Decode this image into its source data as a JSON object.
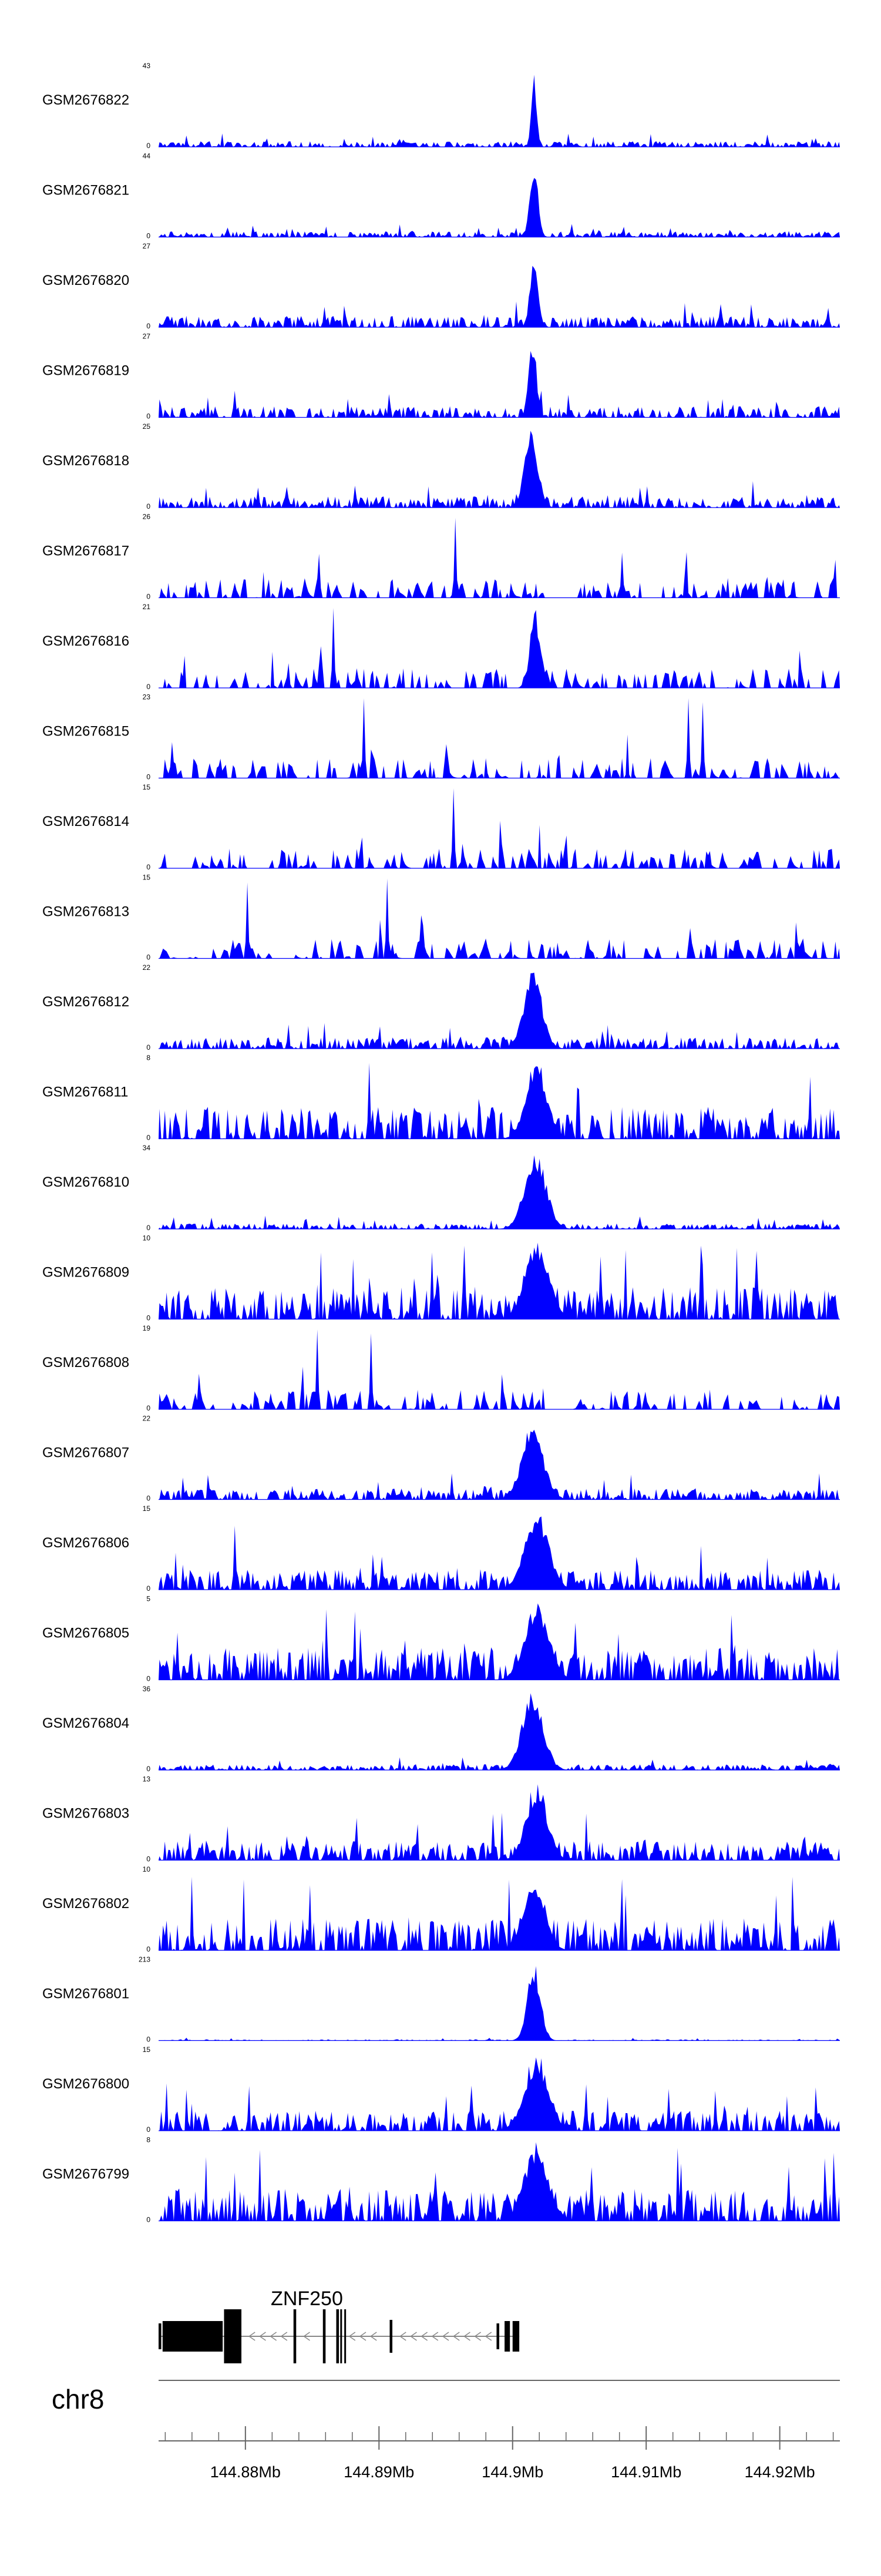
{
  "chart_data": {
    "type": "area",
    "title": "",
    "chromosome": "chr8",
    "x_axis": {
      "unit": "Mb",
      "range": [
        144.8735,
        144.9245
      ],
      "ticks": [
        144.88,
        144.89,
        144.9,
        144.91,
        144.92
      ],
      "tick_labels": [
        "144.88Mb",
        "144.89Mb",
        "144.9Mb",
        "144.91Mb",
        "144.92Mb"
      ]
    },
    "tracks": [
      {
        "name": "GSM2676822",
        "ymax": "43",
        "yzero": "0",
        "style": "dense",
        "peaks": [
          {
            "x": 144.9016,
            "h": 1.0,
            "w": 0.0002
          }
        ],
        "spikes": []
      },
      {
        "name": "GSM2676821",
        "ymax": "44",
        "yzero": "0",
        "style": "dense",
        "peaks": [
          {
            "x": 144.9016,
            "h": 0.95,
            "w": 0.0003
          }
        ],
        "spikes": []
      },
      {
        "name": "GSM2676820",
        "ymax": "27",
        "yzero": "0",
        "style": "dense",
        "peaks": [
          {
            "x": 144.9016,
            "h": 0.9,
            "w": 0.0003
          }
        ],
        "spikes": []
      },
      {
        "name": "GSM2676819",
        "ymax": "27",
        "yzero": "0",
        "style": "dense",
        "peaks": [
          {
            "x": 144.9015,
            "h": 1.0,
            "w": 0.0003
          }
        ],
        "spikes": []
      },
      {
        "name": "GSM2676818",
        "ymax": "25",
        "yzero": "0",
        "style": "dense",
        "peaks": [
          {
            "x": 144.9014,
            "h": 1.0,
            "w": 0.0005
          }
        ],
        "spikes": []
      },
      {
        "name": "GSM2676817",
        "ymax": "26",
        "yzero": "0",
        "style": "sparse",
        "peaks": [],
        "spikes": [
          {
            "x": 144.8956,
            "h": 1.0
          },
          {
            "x": 144.8854,
            "h": 0.55
          }
        ]
      },
      {
        "name": "GSM2676816",
        "ymax": "21",
        "yzero": "0",
        "style": "sparse",
        "peaks": [
          {
            "x": 144.9017,
            "h": 1.0,
            "w": 0.0004
          }
        ],
        "spikes": [
          {
            "x": 144.8865,
            "h": 1.0
          }
        ]
      },
      {
        "name": "GSM2676815",
        "ymax": "23",
        "yzero": "0",
        "style": "sparse",
        "peaks": [],
        "spikes": [
          {
            "x": 144.8888,
            "h": 1.0
          },
          {
            "x": 144.9131,
            "h": 1.0
          },
          {
            "x": 144.9141,
            "h": 0.95
          },
          {
            "x": 144.8745,
            "h": 0.45
          }
        ]
      },
      {
        "name": "GSM2676814",
        "ymax": "15",
        "yzero": "0",
        "style": "sparse",
        "peaks": [],
        "spikes": [
          {
            "x": 144.8955,
            "h": 1.0
          }
        ]
      },
      {
        "name": "GSM2676813",
        "ymax": "15",
        "yzero": "0",
        "style": "sparse",
        "peaks": [],
        "spikes": [
          {
            "x": 144.8906,
            "h": 1.0
          },
          {
            "x": 144.8801,
            "h": 0.95
          }
        ]
      },
      {
        "name": "GSM2676812",
        "ymax": "22",
        "yzero": "0",
        "style": "dense",
        "peaks": [
          {
            "x": 144.9015,
            "h": 1.0,
            "w": 0.0007
          }
        ],
        "spikes": []
      },
      {
        "name": "GSM2676811",
        "ymax": "8",
        "yzero": "0",
        "style": "dense",
        "peaks": [
          {
            "x": 144.9018,
            "h": 1.0,
            "w": 0.0008
          }
        ],
        "spikes": [
          {
            "x": 144.8892,
            "h": 0.95
          }
        ]
      },
      {
        "name": "GSM2676810",
        "ymax": "34",
        "yzero": "0",
        "style": "dense",
        "peaks": [
          {
            "x": 144.9017,
            "h": 1.0,
            "w": 0.0008
          }
        ],
        "spikes": []
      },
      {
        "name": "GSM2676809",
        "ymax": "10",
        "yzero": "0",
        "style": "dense",
        "peaks": [
          {
            "x": 144.9018,
            "h": 1.0,
            "w": 0.0009
          }
        ],
        "spikes": []
      },
      {
        "name": "GSM2676808",
        "ymax": "19",
        "yzero": "0",
        "style": "sparse",
        "peaks": [],
        "spikes": [
          {
            "x": 144.8853,
            "h": 1.0
          },
          {
            "x": 144.8893,
            "h": 0.95
          }
        ]
      },
      {
        "name": "GSM2676807",
        "ymax": "22",
        "yzero": "0",
        "style": "dense",
        "peaks": [
          {
            "x": 144.9015,
            "h": 1.0,
            "w": 0.0008
          }
        ],
        "spikes": []
      },
      {
        "name": "GSM2676806",
        "ymax": "15",
        "yzero": "0",
        "style": "dense",
        "peaks": [
          {
            "x": 144.9018,
            "h": 1.0,
            "w": 0.0009
          }
        ],
        "spikes": [
          {
            "x": 144.8791,
            "h": 0.8
          }
        ]
      },
      {
        "name": "GSM2676805",
        "ymax": "5",
        "yzero": "0",
        "style": "dense",
        "peaks": [
          {
            "x": 144.9018,
            "h": 1.0,
            "w": 0.0009
          }
        ],
        "spikes": []
      },
      {
        "name": "GSM2676804",
        "ymax": "36",
        "yzero": "0",
        "style": "dense",
        "peaks": [
          {
            "x": 144.9015,
            "h": 1.0,
            "w": 0.0008
          }
        ],
        "spikes": []
      },
      {
        "name": "GSM2676803",
        "ymax": "13",
        "yzero": "0",
        "style": "dense",
        "peaks": [
          {
            "x": 144.9018,
            "h": 1.0,
            "w": 0.0008
          }
        ],
        "spikes": []
      },
      {
        "name": "GSM2676802",
        "ymax": "10",
        "yzero": "0",
        "style": "dense",
        "peaks": [
          {
            "x": 144.9016,
            "h": 1.0,
            "w": 0.0008
          }
        ],
        "spikes": []
      },
      {
        "name": "GSM2676801",
        "ymax": "213",
        "yzero": "0",
        "style": "flat",
        "peaks": [
          {
            "x": 144.9016,
            "h": 1.0,
            "w": 0.0005
          }
        ],
        "spikes": []
      },
      {
        "name": "GSM2676800",
        "ymax": "15",
        "yzero": "0",
        "style": "dense",
        "peaks": [
          {
            "x": 144.9018,
            "h": 1.0,
            "w": 0.0009
          }
        ],
        "spikes": []
      },
      {
        "name": "GSM2676799",
        "ymax": "8",
        "yzero": "0",
        "style": "dense",
        "peaks": [
          {
            "x": 144.9018,
            "h": 1.0,
            "w": 0.0009
          }
        ],
        "spikes": []
      }
    ],
    "gene": {
      "name": "ZNF250",
      "strand": "-",
      "start": 144.8735,
      "end": 144.9005,
      "exons": [
        {
          "start": 144.8735,
          "end": 144.8737,
          "thick": false
        },
        {
          "start": 144.8738,
          "end": 144.8783,
          "thick": true
        },
        {
          "start": 144.8784,
          "end": 144.8797,
          "thick": true
        },
        {
          "start": 144.8836,
          "end": 144.8838,
          "thick": false
        },
        {
          "start": 144.8858,
          "end": 144.886,
          "thick": false
        },
        {
          "start": 144.8868,
          "end": 144.887,
          "thick": false
        },
        {
          "start": 144.8871,
          "end": 144.8872,
          "thick": false
        },
        {
          "start": 144.8874,
          "end": 144.8875,
          "thick": false
        },
        {
          "start": 144.8908,
          "end": 144.891,
          "thick": false
        },
        {
          "start": 144.8988,
          "end": 144.899,
          "thick": false
        },
        {
          "start": 144.8994,
          "end": 144.8998,
          "thick": true
        },
        {
          "start": 144.9,
          "end": 144.9005,
          "thick": true
        }
      ]
    },
    "colors": {
      "signal": "#0000ff",
      "baseline": "#0000ff",
      "axis": "#333333",
      "gene": "#000000"
    }
  }
}
